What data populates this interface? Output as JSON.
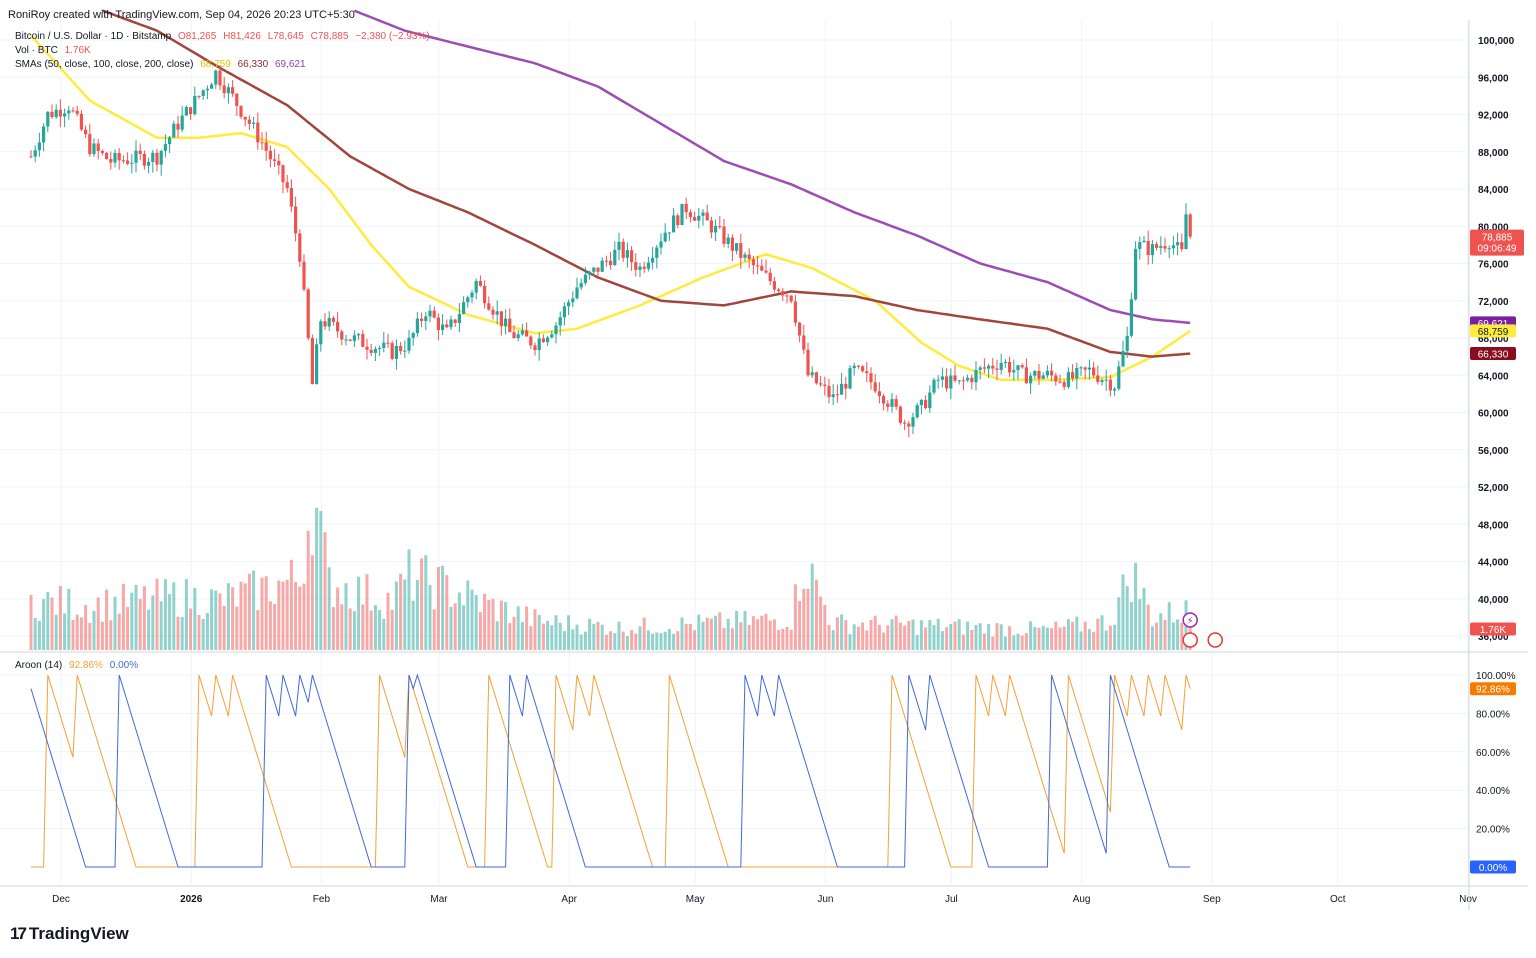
{
  "header": {
    "created_by": "RoniRoy created with TradingView.com, Sep 04, 2026 20:23 UTC+5:30"
  },
  "legend": {
    "symbol": "Bitcoin / U.S. Dollar · 1D · Bitstamp",
    "open": "O81,265",
    "high": "H81,426",
    "low": "L78,645",
    "close": "C78,885",
    "change": "−2,380 (−2.93%)",
    "vol_label": "Vol · BTC",
    "vol_value": "1.76K",
    "sma_label": "SMAs (50, close, 100, close, 200, close)",
    "sma50": "68,759",
    "sma100": "66,330",
    "sma200": "69,621",
    "aroon_label": "Aroon (14)",
    "aroon_up": "92.86%",
    "aroon_down": "0.00%"
  },
  "brand": {
    "name": "TradingView"
  },
  "colors": {
    "up": "#26a69a",
    "down": "#ef5350",
    "sma50": "#ffeb3b",
    "sma100": "#a0463d",
    "sma200": "#9c4db3",
    "aroon_up": "#f7a035",
    "aroon_down": "#3f6ad8"
  },
  "chart_data": [
    {
      "type": "candlestick",
      "title": "Bitcoin / U.S. Dollar · 1D · Bitstamp",
      "x_ticks": [
        "Dec",
        "2026",
        "Feb",
        "Mar",
        "Apr",
        "May",
        "Jun",
        "Jul",
        "Aug",
        "Sep",
        "Oct",
        "Nov"
      ],
      "y_ticks": [
        "100,000",
        "96,000",
        "92,000",
        "88,000",
        "84,000",
        "80,000",
        "76,000",
        "72,000",
        "68,000",
        "64,000",
        "60,000",
        "56,000",
        "52,000",
        "48,000",
        "44,000",
        "40,000",
        "36,000"
      ],
      "ylim": [
        36000,
        100000
      ],
      "price_anchors": [
        [
          "2025-12-01",
          87500
        ],
        [
          "2025-12-05",
          92000
        ],
        [
          "2025-12-10",
          93000
        ],
        [
          "2025-12-15",
          88500
        ],
        [
          "2025-12-20",
          87000
        ],
        [
          "2025-12-31",
          87500
        ],
        [
          "2026-01-05",
          91000
        ],
        [
          "2026-01-10",
          94000
        ],
        [
          "2026-01-14",
          96500
        ],
        [
          "2026-01-20",
          92500
        ],
        [
          "2026-01-25",
          89000
        ],
        [
          "2026-01-31",
          84000
        ],
        [
          "2026-02-03",
          77000
        ],
        [
          "2026-02-06",
          63000
        ],
        [
          "2026-02-08",
          70000
        ],
        [
          "2026-02-15",
          68000
        ],
        [
          "2026-02-25",
          66500
        ],
        [
          "2026-03-01",
          67500
        ],
        [
          "2026-03-05",
          71000
        ],
        [
          "2026-03-10",
          68500
        ],
        [
          "2026-03-17",
          74000
        ],
        [
          "2026-03-25",
          68500
        ],
        [
          "2026-03-31",
          67500
        ],
        [
          "2026-04-05",
          69500
        ],
        [
          "2026-04-10",
          73500
        ],
        [
          "2026-04-20",
          77500
        ],
        [
          "2026-04-25",
          75500
        ],
        [
          "2026-05-01",
          79500
        ],
        [
          "2026-05-06",
          82000
        ],
        [
          "2026-05-12",
          80000
        ],
        [
          "2026-05-20",
          76500
        ],
        [
          "2026-05-25",
          74500
        ],
        [
          "2026-05-31",
          72500
        ],
        [
          "2026-06-04",
          64000
        ],
        [
          "2026-06-10",
          61500
        ],
        [
          "2026-06-15",
          64500
        ],
        [
          "2026-06-20",
          63000
        ],
        [
          "2026-06-27",
          59000
        ],
        [
          "2026-07-01",
          60500
        ],
        [
          "2026-07-05",
          63500
        ],
        [
          "2026-07-10",
          63000
        ],
        [
          "2026-07-15",
          64500
        ],
        [
          "2026-07-20",
          65500
        ],
        [
          "2026-07-25",
          64000
        ],
        [
          "2026-07-31",
          64000
        ],
        [
          "2026-08-05",
          63500
        ],
        [
          "2026-08-10",
          64500
        ],
        [
          "2026-08-16",
          63000
        ],
        [
          "2026-08-19",
          68000
        ],
        [
          "2026-08-21",
          78000
        ],
        [
          "2026-08-25",
          77500
        ],
        [
          "2026-08-29",
          78500
        ],
        [
          "2026-09-01",
          77000
        ],
        [
          "2026-09-02",
          81265
        ],
        [
          "2026-09-03",
          78885
        ]
      ],
      "last": {
        "open": 81265,
        "high": 81426,
        "low": 78645,
        "close": 78885
      },
      "price_tag": {
        "value": "78,885",
        "countdown": "09:06:49",
        "high_tick": "80,000"
      },
      "series": [
        {
          "name": "SMA 50",
          "last": 68759,
          "anchors": [
            [
              "2025-12-01",
              100500
            ],
            [
              "2025-12-15",
              93500
            ],
            [
              "2025-12-31",
              89500
            ],
            [
              "2026-01-10",
              89500
            ],
            [
              "2026-01-20",
              90000
            ],
            [
              "2026-01-31",
              88500
            ],
            [
              "2026-02-10",
              84000
            ],
            [
              "2026-02-20",
              78000
            ],
            [
              "2026-03-01",
              73500
            ],
            [
              "2026-03-15",
              70500
            ],
            [
              "2026-03-31",
              68500
            ],
            [
              "2026-04-10",
              69000
            ],
            [
              "2026-04-25",
              71500
            ],
            [
              "2026-05-10",
              74500
            ],
            [
              "2026-05-25",
              77000
            ],
            [
              "2026-06-05",
              75500
            ],
            [
              "2026-06-20",
              72000
            ],
            [
              "2026-07-01",
              67500
            ],
            [
              "2026-07-10",
              65000
            ],
            [
              "2026-07-20",
              63500
            ],
            [
              "2026-08-01",
              63500
            ],
            [
              "2026-08-15",
              63800
            ],
            [
              "2026-08-25",
              66000
            ],
            [
              "2026-09-03",
              68759
            ]
          ]
        },
        {
          "name": "SMA 100",
          "last": 66330,
          "anchors": [
            [
              "2025-12-01",
              106000
            ],
            [
              "2025-12-31",
              101000
            ],
            [
              "2026-01-15",
              97000
            ],
            [
              "2026-01-31",
              93000
            ],
            [
              "2026-02-15",
              87500
            ],
            [
              "2026-03-01",
              84000
            ],
            [
              "2026-03-15",
              81500
            ],
            [
              "2026-03-31",
              78000
            ],
            [
              "2026-04-15",
              74500
            ],
            [
              "2026-04-30",
              72000
            ],
            [
              "2026-05-15",
              71500
            ],
            [
              "2026-05-31",
              73000
            ],
            [
              "2026-06-15",
              72500
            ],
            [
              "2026-06-30",
              71000
            ],
            [
              "2026-07-15",
              70000
            ],
            [
              "2026-07-31",
              69000
            ],
            [
              "2026-08-15",
              66500
            ],
            [
              "2026-08-25",
              66000
            ],
            [
              "2026-09-03",
              66330
            ]
          ]
        },
        {
          "name": "SMA 200",
          "last": 69621,
          "anchors": [
            [
              "2026-01-01",
              110000
            ],
            [
              "2026-01-31",
              106000
            ],
            [
              "2026-02-28",
              101000
            ],
            [
              "2026-03-31",
              97500
            ],
            [
              "2026-04-15",
              95000
            ],
            [
              "2026-04-30",
              91000
            ],
            [
              "2026-05-15",
              87000
            ],
            [
              "2026-05-31",
              84500
            ],
            [
              "2026-06-15",
              81500
            ],
            [
              "2026-06-30",
              79000
            ],
            [
              "2026-07-15",
              76000
            ],
            [
              "2026-07-31",
              74000
            ],
            [
              "2026-08-15",
              71000
            ],
            [
              "2026-08-25",
              70000
            ],
            [
              "2026-09-03",
              69621
            ]
          ]
        }
      ]
    },
    {
      "type": "bar",
      "title": "Vol · BTC",
      "last_value": "1.76K",
      "volume_anchors": [
        [
          "2025-12-01",
          2.2
        ],
        [
          "2025-12-15",
          2.0
        ],
        [
          "2026-01-05",
          2.4
        ],
        [
          "2026-01-15",
          2.2
        ],
        [
          "2026-02-03",
          3.2
        ],
        [
          "2026-02-06",
          7.0
        ],
        [
          "2026-02-10",
          3.0
        ],
        [
          "2026-02-25",
          2.2
        ],
        [
          "2026-03-01",
          3.3
        ],
        [
          "2026-03-10",
          2.8
        ],
        [
          "2026-03-20",
          2.0
        ],
        [
          "2026-04-01",
          1.3
        ],
        [
          "2026-04-20",
          1.0
        ],
        [
          "2026-05-01",
          1.1
        ],
        [
          "2026-05-31",
          1.4
        ],
        [
          "2026-06-03",
          4.0
        ],
        [
          "2026-06-10",
          1.2
        ],
        [
          "2026-07-01",
          1.1
        ],
        [
          "2026-07-31",
          0.9
        ],
        [
          "2026-08-15",
          1.3
        ],
        [
          "2026-08-20",
          3.5
        ],
        [
          "2026-08-25",
          1.5
        ],
        [
          "2026-09-03",
          1.76
        ]
      ]
    },
    {
      "type": "line",
      "title": "Aroon (14)",
      "y_ticks": [
        "100.00%",
        "80.00%",
        "60.00%",
        "40.00%",
        "20.00%"
      ],
      "ylim": [
        0,
        100
      ],
      "series": [
        {
          "name": "Aroon Up",
          "last": "92.86%",
          "peaks": [
            "2025-12-05",
            "2025-12-12",
            "2026-01-10",
            "2026-01-14",
            "2026-01-18",
            "2026-02-22",
            "2026-03-01",
            "2026-03-20",
            "2026-04-05",
            "2026-04-10",
            "2026-04-14",
            "2026-05-02",
            "2026-06-24",
            "2026-07-14",
            "2026-07-18",
            "2026-07-22",
            "2026-08-05",
            "2026-08-16",
            "2026-08-20",
            "2026-08-24",
            "2026-08-28",
            "2026-09-02"
          ]
        },
        {
          "name": "Aroon Down",
          "last": "0.00%",
          "peaks": [
            "2025-11-30",
            "2025-12-22",
            "2026-01-26",
            "2026-01-30",
            "2026-02-03",
            "2026-02-06",
            "2026-03-01",
            "2026-03-03",
            "2026-03-25",
            "2026-03-29",
            "2026-05-20",
            "2026-05-24",
            "2026-05-28",
            "2026-06-28",
            "2026-07-03",
            "2026-08-01",
            "2026-08-15"
          ]
        }
      ]
    }
  ]
}
